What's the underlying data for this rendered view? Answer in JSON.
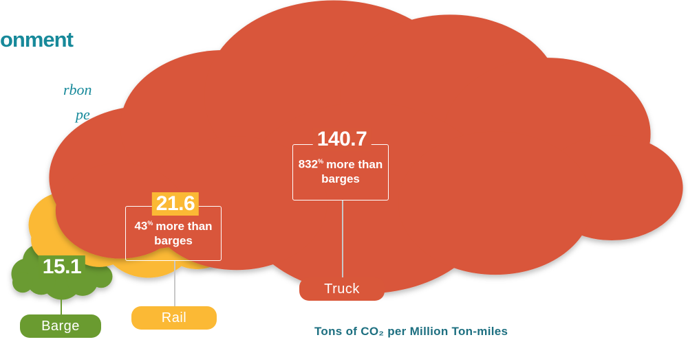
{
  "chart_data": {
    "type": "cloud",
    "title": "onment",
    "intro_lines": [
      "rbon",
      "pe"
    ],
    "categories": [
      "Barge",
      "Rail",
      "Truck"
    ],
    "values": [
      15.1,
      21.6,
      140.7
    ],
    "colors": [
      "#6a9b30",
      "#fbb935",
      "#d9573a"
    ],
    "notes": [
      null,
      {
        "number": "43",
        "unit": "%",
        "text": "more than barges"
      },
      {
        "number": "832",
        "unit": "%",
        "text": "more than barges"
      }
    ],
    "footnote": "Tons of CO₂ per Million Ton-miles"
  }
}
